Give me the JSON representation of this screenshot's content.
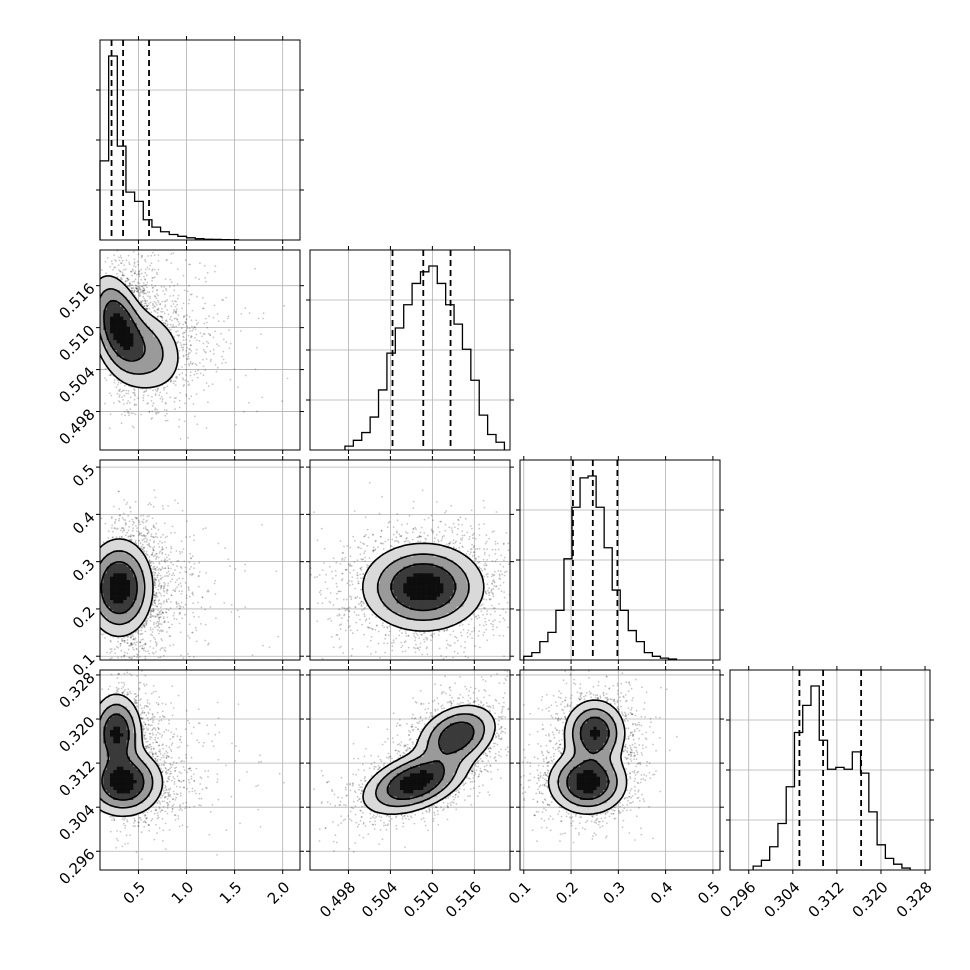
{
  "chart_data": {
    "type": "corner",
    "parameters": [
      {
        "range": [
          0.1,
          2.18
        ],
        "ticks": [
          0.5,
          1.0,
          1.5,
          2.0
        ],
        "tick_labels": [
          "0.5",
          "1.0",
          "1.5",
          "2.0"
        ],
        "quantiles": [
          0.22,
          0.34,
          0.61
        ],
        "histogram": {
          "bin_edges": [
            0.1,
            0.19,
            0.28,
            0.37,
            0.46,
            0.55,
            0.64,
            0.73,
            0.82,
            0.91,
            1.0,
            1.09,
            1.18,
            1.27,
            1.36,
            1.45,
            1.54
          ],
          "counts": [
            0.43,
            1.0,
            0.51,
            0.26,
            0.21,
            0.11,
            0.07,
            0.045,
            0.03,
            0.02,
            0.012,
            0.007,
            0.004,
            0.003,
            0.002,
            0.001
          ]
        }
      },
      {
        "range": [
          0.4925,
          0.5211
        ],
        "ticks": [
          0.498,
          0.504,
          0.51,
          0.516
        ],
        "tick_labels": [
          "0.498",
          "0.504",
          "0.510",
          "0.516"
        ],
        "quantiles": [
          0.5043,
          0.5087,
          0.5126
        ],
        "histogram": {
          "bin_edges": [
            0.4975,
            0.4987,
            0.4999,
            0.5011,
            0.5023,
            0.5035,
            0.5047,
            0.5059,
            0.5071,
            0.5083,
            0.5095,
            0.5107,
            0.5119,
            0.5131,
            0.5143,
            0.5155,
            0.5167,
            0.5179,
            0.5191,
            0.5203
          ],
          "counts": [
            0.02,
            0.05,
            0.09,
            0.17,
            0.31,
            0.5,
            0.63,
            0.75,
            0.86,
            0.92,
            0.95,
            0.86,
            0.75,
            0.65,
            0.52,
            0.36,
            0.18,
            0.08,
            0.04
          ]
        }
      },
      {
        "range": [
          0.092,
          0.515
        ],
        "ticks": [
          0.1,
          0.2,
          0.3,
          0.4,
          0.5
        ],
        "tick_labels": [
          "0.1",
          "0.2",
          "0.3",
          "0.4",
          "0.5"
        ],
        "quantiles": [
          0.204,
          0.246,
          0.298
        ],
        "histogram": {
          "bin_edges": [
            0.1,
            0.117,
            0.134,
            0.151,
            0.168,
            0.185,
            0.202,
            0.219,
            0.236,
            0.253,
            0.27,
            0.287,
            0.304,
            0.321,
            0.338,
            0.355,
            0.372,
            0.389,
            0.406,
            0.423
          ],
          "counts": [
            0.02,
            0.04,
            0.1,
            0.15,
            0.27,
            0.55,
            0.83,
            0.99,
            1.0,
            0.83,
            0.61,
            0.38,
            0.27,
            0.16,
            0.1,
            0.04,
            0.02,
            0.01,
            0.005
          ]
        }
      },
      {
        "range": [
          0.2926,
          0.3289
        ],
        "ticks": [
          0.296,
          0.304,
          0.312,
          0.32,
          0.328
        ],
        "tick_labels": [
          "0.296",
          "0.304",
          "0.312",
          "0.320",
          "0.328"
        ],
        "quantiles": [
          0.3052,
          0.3095,
          0.3164
        ],
        "histogram": {
          "bin_edges": [
            0.2968,
            0.2983,
            0.2998,
            0.3013,
            0.3028,
            0.3043,
            0.3058,
            0.3073,
            0.3088,
            0.3103,
            0.3118,
            0.3133,
            0.3148,
            0.3163,
            0.3178,
            0.3193,
            0.3208,
            0.3223,
            0.3238,
            0.3253
          ],
          "counts": [
            0.02,
            0.05,
            0.12,
            0.24,
            0.43,
            0.71,
            0.85,
            0.95,
            0.67,
            0.52,
            0.53,
            0.52,
            0.61,
            0.5,
            0.3,
            0.13,
            0.06,
            0.03,
            0.01
          ]
        }
      }
    ],
    "pairs": [
      {
        "row": 1,
        "col": 0,
        "peaks": [
          {
            "x": 0.28,
            "y": 0.5105,
            "sx": 0.14,
            "sy": 0.0035,
            "r": -0.35,
            "w": 1.0
          },
          {
            "x": 0.55,
            "y": 0.5068,
            "sx": 0.22,
            "sy": 0.0032,
            "r": -0.2,
            "w": 0.55
          }
        ]
      },
      {
        "row": 2,
        "col": 0,
        "peaks": [
          {
            "x": 0.3,
            "y": 0.245,
            "sx": 0.17,
            "sy": 0.05,
            "r": 0.0,
            "w": 1.0
          }
        ]
      },
      {
        "row": 2,
        "col": 1,
        "peaks": [
          {
            "x": 0.5087,
            "y": 0.246,
            "sx": 0.0042,
            "sy": 0.045,
            "r": 0.0,
            "w": 1.0
          }
        ]
      },
      {
        "row": 3,
        "col": 0,
        "peaks": [
          {
            "x": 0.27,
            "y": 0.3175,
            "sx": 0.13,
            "sy": 0.0035,
            "r": 0.0,
            "w": 0.9
          },
          {
            "x": 0.34,
            "y": 0.3085,
            "sx": 0.2,
            "sy": 0.003,
            "r": 0.0,
            "w": 1.0
          }
        ]
      },
      {
        "row": 3,
        "col": 1,
        "peaks": [
          {
            "x": 0.5075,
            "y": 0.3085,
            "sx": 0.0036,
            "sy": 0.0028,
            "r": 0.45,
            "w": 1.0
          },
          {
            "x": 0.5135,
            "y": 0.317,
            "sx": 0.0028,
            "sy": 0.0028,
            "r": 0.3,
            "w": 0.8
          }
        ]
      },
      {
        "row": 3,
        "col": 2,
        "peaks": [
          {
            "x": 0.235,
            "y": 0.3085,
            "sx": 0.04,
            "sy": 0.0028,
            "r": 0.0,
            "w": 1.0
          },
          {
            "x": 0.25,
            "y": 0.3175,
            "sx": 0.032,
            "sy": 0.003,
            "r": 0.0,
            "w": 0.85
          }
        ]
      }
    ],
    "grid": true,
    "title": "",
    "xlabel": "",
    "ylabel": ""
  }
}
